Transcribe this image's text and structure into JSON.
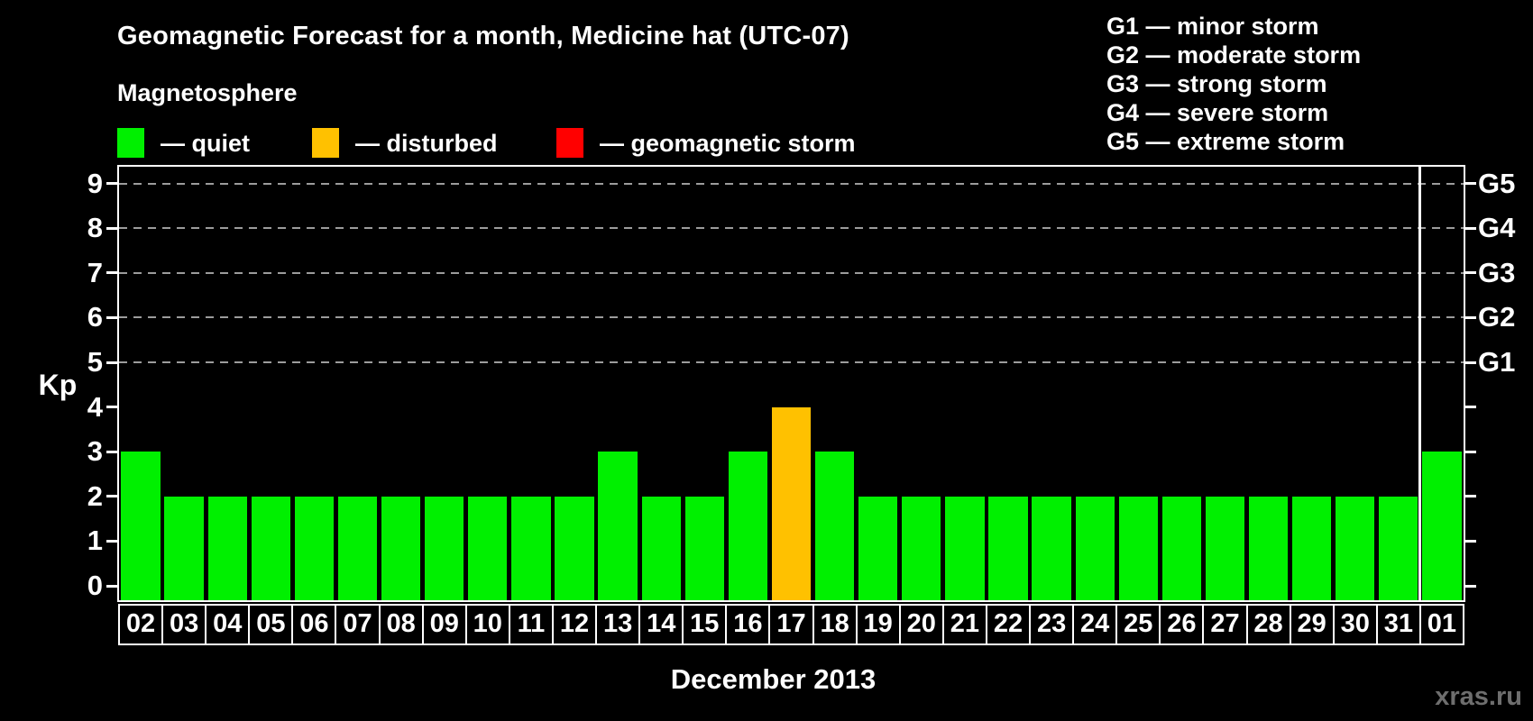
{
  "header": {
    "title": "Geomagnetic Forecast for a month, Medicine hat (UTC-07)",
    "legend_heading": "Magnetosphere",
    "legend_items": [
      {
        "id": "quiet",
        "label": "— quiet",
        "color": "#00f000"
      },
      {
        "id": "disturbed",
        "label": "— disturbed",
        "color": "#ffc100"
      },
      {
        "id": "storm",
        "label": "— geomagnetic storm",
        "color": "#ff0000"
      }
    ],
    "g_scale_legend": [
      "G1 — minor storm",
      "G2 — moderate storm",
      "G3 — strong storm",
      "G4 — severe storm",
      "G5 — extreme storm"
    ]
  },
  "chart_data": {
    "type": "bar",
    "title": "Geomagnetic Forecast for a month, Medicine hat (UTC-07)",
    "ylabel": "Kp",
    "xlabel": "December 2013",
    "ylim": [
      0,
      9
    ],
    "yticks": [
      0,
      1,
      2,
      3,
      4,
      5,
      6,
      7,
      8,
      9
    ],
    "gridlines_at_kp": [
      5,
      6,
      7,
      8,
      9
    ],
    "grid_style": "dashed horizontal",
    "right_axis_labels": [
      {
        "kp": 5,
        "label": "G1"
      },
      {
        "kp": 6,
        "label": "G2"
      },
      {
        "kp": 7,
        "label": "G3"
      },
      {
        "kp": 8,
        "label": "G4"
      },
      {
        "kp": 9,
        "label": "G5"
      }
    ],
    "categories": [
      "02",
      "03",
      "04",
      "05",
      "06",
      "07",
      "08",
      "09",
      "10",
      "11",
      "12",
      "13",
      "14",
      "15",
      "16",
      "17",
      "18",
      "19",
      "20",
      "21",
      "22",
      "23",
      "24",
      "25",
      "26",
      "27",
      "28",
      "29",
      "30",
      "31",
      "01"
    ],
    "values": [
      3,
      2,
      2,
      2,
      2,
      2,
      2,
      2,
      2,
      2,
      2,
      3,
      2,
      2,
      3,
      4,
      3,
      2,
      2,
      2,
      2,
      2,
      2,
      2,
      2,
      2,
      2,
      2,
      2,
      2,
      3
    ],
    "statuses": [
      "quiet",
      "quiet",
      "quiet",
      "quiet",
      "quiet",
      "quiet",
      "quiet",
      "quiet",
      "quiet",
      "quiet",
      "quiet",
      "quiet",
      "quiet",
      "quiet",
      "quiet",
      "disturbed",
      "quiet",
      "quiet",
      "quiet",
      "quiet",
      "quiet",
      "quiet",
      "quiet",
      "quiet",
      "quiet",
      "quiet",
      "quiet",
      "quiet",
      "quiet",
      "quiet",
      "quiet"
    ],
    "status_colors": {
      "quiet": "#00f000",
      "disturbed": "#ffc100",
      "storm": "#ff0000"
    },
    "month_separator_between": [
      "31",
      "01"
    ],
    "legend_position": "top-left"
  },
  "footer": {
    "month_label": "December 2013",
    "watermark": "xras.ru"
  }
}
